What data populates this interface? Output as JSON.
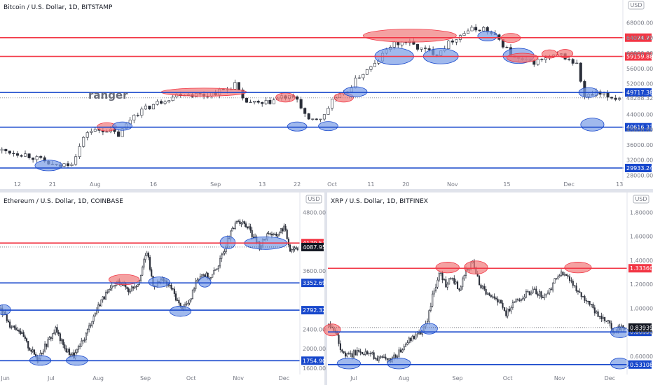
{
  "colors": {
    "up": "#ffffff",
    "down": "#2a2e39",
    "red": "#f23645",
    "blue": "#1848cc",
    "redZone": "#f07d7d",
    "blueZone": "#7b9ee6"
  },
  "chart_data": [
    {
      "type": "candlestick",
      "title": "Bitcoin / U.S. Dollar, 1D, BITSTAMP",
      "currency": "USD",
      "ylim": [
        27000,
        71000
      ],
      "y_ticks": [
        {
          "v": 28000,
          "label": "28000.00"
        },
        {
          "v": 32000,
          "label": "32000.00"
        },
        {
          "v": 36000,
          "label": "36000.00"
        },
        {
          "v": 40000,
          "label": "40000.00"
        },
        {
          "v": 44000,
          "label": "44000.00"
        },
        {
          "v": 52000,
          "label": "52000.00"
        },
        {
          "v": 56000,
          "label": "56000.00"
        },
        {
          "v": 60000,
          "label": "60000.00"
        },
        {
          "v": 64000,
          "label": "64000.00"
        },
        {
          "v": 68000,
          "label": "68000.00"
        }
      ],
      "x_ticks": [
        {
          "i": 4,
          "label": "12"
        },
        {
          "i": 13,
          "label": "21"
        },
        {
          "i": 24,
          "label": "Aug"
        },
        {
          "i": 39,
          "label": "16"
        },
        {
          "i": 55,
          "label": "Sep"
        },
        {
          "i": 67,
          "label": "13"
        },
        {
          "i": 76,
          "label": "22"
        },
        {
          "i": 85,
          "label": "Oct"
        },
        {
          "i": 95,
          "label": "11"
        },
        {
          "i": 104,
          "label": "20"
        },
        {
          "i": 116,
          "label": "Nov"
        },
        {
          "i": 130,
          "label": "15"
        },
        {
          "i": 146,
          "label": "Dec"
        },
        {
          "i": 159,
          "label": "13"
        }
      ],
      "levels": [
        {
          "v": 64074.77,
          "label": "64074.77",
          "color": "red"
        },
        {
          "v": 59159.88,
          "label": "59159.88",
          "color": "red"
        },
        {
          "v": 49717.38,
          "label": "49717.38",
          "color": "blue"
        },
        {
          "v": 40616.33,
          "label": "40616.33",
          "color": "blue"
        },
        {
          "v": 29933.24,
          "label": "29933.24",
          "color": "blue"
        }
      ],
      "last_price": {
        "v": 48288.32,
        "label": "48288.32"
      },
      "annotation": "ranger",
      "path": [
        [
          0,
          34500
        ],
        [
          6,
          33500
        ],
        [
          10,
          32000
        ],
        [
          14,
          30200
        ],
        [
          18,
          31500
        ],
        [
          22,
          39500
        ],
        [
          27,
          40000
        ],
        [
          30,
          38500
        ],
        [
          34,
          44000
        ],
        [
          40,
          47000
        ],
        [
          46,
          49500
        ],
        [
          52,
          49000
        ],
        [
          58,
          50500
        ],
        [
          60,
          52000
        ],
        [
          62,
          47500
        ],
        [
          67,
          46500
        ],
        [
          72,
          48500
        ],
        [
          76,
          48000
        ],
        [
          79,
          42000
        ],
        [
          83,
          43500
        ],
        [
          85,
          48000
        ],
        [
          88,
          49000
        ],
        [
          92,
          54000
        ],
        [
          96,
          57000
        ],
        [
          100,
          62000
        ],
        [
          104,
          63000
        ],
        [
          108,
          61000
        ],
        [
          112,
          60000
        ],
        [
          116,
          63500
        ],
        [
          120,
          66000
        ],
        [
          124,
          66500
        ],
        [
          128,
          63500
        ],
        [
          132,
          58500
        ],
        [
          136,
          57500
        ],
        [
          140,
          58500
        ],
        [
          144,
          59500
        ],
        [
          148,
          57000
        ],
        [
          150,
          48500
        ],
        [
          153,
          49300
        ],
        [
          156,
          48600
        ],
        [
          158,
          48300
        ]
      ],
      "zones": [
        {
          "i": 12,
          "v": 30600,
          "w": 7,
          "h": 2800,
          "color": "blue"
        },
        {
          "i": 27,
          "v": 40700,
          "w": 5,
          "h": 2200,
          "color": "red"
        },
        {
          "i": 31,
          "v": 40900,
          "w": 5,
          "h": 2200,
          "color": "blue"
        },
        {
          "i": 52,
          "v": 49800,
          "w": 22,
          "h": 2100,
          "color": "red"
        },
        {
          "i": 73,
          "v": 48400,
          "w": 5,
          "h": 2400,
          "color": "red"
        },
        {
          "i": 76,
          "v": 40800,
          "w": 5,
          "h": 2400,
          "color": "blue"
        },
        {
          "i": 84,
          "v": 40900,
          "w": 5,
          "h": 2400,
          "color": "blue"
        },
        {
          "i": 88,
          "v": 48400,
          "w": 5,
          "h": 2400,
          "color": "red"
        },
        {
          "i": 91,
          "v": 49900,
          "w": 6,
          "h": 2600,
          "color": "blue"
        },
        {
          "i": 105,
          "v": 64600,
          "w": 24,
          "h": 3400,
          "color": "red"
        },
        {
          "i": 101,
          "v": 59200,
          "w": 10,
          "h": 4400,
          "color": "blue"
        },
        {
          "i": 113,
          "v": 59200,
          "w": 9,
          "h": 4000,
          "color": "blue"
        },
        {
          "i": 125,
          "v": 64500,
          "w": 5,
          "h": 2600,
          "color": "blue"
        },
        {
          "i": 131,
          "v": 64000,
          "w": 5,
          "h": 2400,
          "color": "red"
        },
        {
          "i": 133,
          "v": 59300,
          "w": 8,
          "h": 4000,
          "color": "blue"
        },
        {
          "i": 134,
          "v": 58800,
          "w": 8,
          "h": 2400,
          "color": "red"
        },
        {
          "i": 141,
          "v": 59800,
          "w": 4,
          "h": 2200,
          "color": "red"
        },
        {
          "i": 145,
          "v": 59900,
          "w": 4,
          "h": 2200,
          "color": "red"
        },
        {
          "i": 151,
          "v": 49700,
          "w": 5,
          "h": 2600,
          "color": "blue"
        },
        {
          "i": 152,
          "v": 41300,
          "w": 6,
          "h": 3400,
          "color": "blue"
        }
      ]
    },
    {
      "type": "candlestick",
      "title": "Ethereum / U.S. Dollar, 1D, COINBASE",
      "currency": "USD",
      "ylim": [
        1500,
        4950
      ],
      "y_ticks": [
        {
          "v": 1600,
          "label": "1600.00"
        },
        {
          "v": 2000,
          "label": "2000.00"
        },
        {
          "v": 2400,
          "label": "2400.00"
        },
        {
          "v": 3600,
          "label": "3600.00"
        },
        {
          "v": 4800,
          "label": "4800.00"
        }
      ],
      "x_ticks": [
        {
          "i": 3,
          "label": "Jun"
        },
        {
          "i": 33,
          "label": "Jul"
        },
        {
          "i": 64,
          "label": "Aug"
        },
        {
          "i": 95,
          "label": "Sep"
        },
        {
          "i": 125,
          "label": "Oct"
        },
        {
          "i": 156,
          "label": "Nov"
        },
        {
          "i": 186,
          "label": "Dec"
        }
      ],
      "levels": [
        {
          "v": 4170.51,
          "label": "4170.51",
          "color": "red"
        },
        {
          "v": 3352.69,
          "label": "3352.69",
          "color": "blue"
        },
        {
          "v": 2792.32,
          "label": "2792.32",
          "color": "blue"
        },
        {
          "v": 1754.9,
          "label": "1754.90",
          "color": "blue"
        }
      ],
      "last_price": {
        "v": 4087.95,
        "label": "4087.95"
      },
      "path": [
        [
          0,
          2800
        ],
        [
          6,
          2500
        ],
        [
          12,
          2400
        ],
        [
          18,
          2050
        ],
        [
          24,
          1800
        ],
        [
          30,
          2100
        ],
        [
          36,
          2400
        ],
        [
          42,
          2000
        ],
        [
          48,
          1850
        ],
        [
          54,
          2150
        ],
        [
          60,
          2600
        ],
        [
          66,
          3000
        ],
        [
          72,
          3200
        ],
        [
          78,
          3400
        ],
        [
          84,
          3200
        ],
        [
          90,
          3350
        ],
        [
          96,
          4000
        ],
        [
          100,
          3300
        ],
        [
          106,
          3400
        ],
        [
          112,
          3250
        ],
        [
          118,
          2850
        ],
        [
          124,
          2950
        ],
        [
          128,
          3400
        ],
        [
          132,
          3550
        ],
        [
          138,
          3450
        ],
        [
          144,
          3800
        ],
        [
          150,
          4300
        ],
        [
          156,
          4650
        ],
        [
          162,
          4500
        ],
        [
          166,
          4300
        ],
        [
          170,
          4100
        ],
        [
          176,
          4400
        ],
        [
          180,
          4300
        ],
        [
          186,
          4500
        ],
        [
          190,
          4050
        ],
        [
          194,
          4087
        ]
      ],
      "zones": [
        {
          "i": 2,
          "v": 2800,
          "w": 9,
          "h": 210,
          "color": "blue"
        },
        {
          "i": 26,
          "v": 1760,
          "w": 14,
          "h": 200,
          "color": "blue"
        },
        {
          "i": 50,
          "v": 1760,
          "w": 14,
          "h": 200,
          "color": "blue"
        },
        {
          "i": 81,
          "v": 3420,
          "w": 20,
          "h": 210,
          "color": "red"
        },
        {
          "i": 104,
          "v": 3370,
          "w": 14,
          "h": 210,
          "color": "blue"
        },
        {
          "i": 118,
          "v": 2770,
          "w": 14,
          "h": 210,
          "color": "blue"
        },
        {
          "i": 134,
          "v": 3370,
          "w": 8,
          "h": 210,
          "color": "blue"
        },
        {
          "i": 149,
          "v": 4180,
          "w": 10,
          "h": 260,
          "color": "blue"
        },
        {
          "i": 174,
          "v": 4170,
          "w": 28,
          "h": 260,
          "color": "blue"
        }
      ]
    },
    {
      "type": "candlestick",
      "title": "XRP / U.S. Dollar, 1D, BITFINEX",
      "currency": "USD",
      "ylim": [
        0.46,
        1.86
      ],
      "y_ticks": [
        {
          "v": 0.6,
          "label": "0.60000"
        },
        {
          "v": 0.8,
          "label": "0.80000"
        },
        {
          "v": 1.0,
          "label": "1.00000"
        },
        {
          "v": 1.2,
          "label": "1.20000"
        },
        {
          "v": 1.4,
          "label": "1.40000"
        },
        {
          "v": 1.6,
          "label": "1.60000"
        },
        {
          "v": 1.8,
          "label": "1.80000"
        }
      ],
      "x_ticks": [
        {
          "i": 15,
          "label": "Jul"
        },
        {
          "i": 45,
          "label": "Aug"
        },
        {
          "i": 77,
          "label": "Sep"
        },
        {
          "i": 107,
          "label": "Oct"
        },
        {
          "i": 138,
          "label": "Nov"
        },
        {
          "i": 168,
          "label": "Dec"
        }
      ],
      "levels": [
        {
          "v": 1.3336,
          "label": "1.33360",
          "color": "red"
        },
        {
          "v": 0.8033,
          "label": "0.80330",
          "color": "blue"
        },
        {
          "v": 0.53108,
          "label": "0.53108",
          "color": "blue"
        }
      ],
      "last_price": {
        "v": 0.83939,
        "label": "0.83939"
      },
      "path": [
        [
          0,
          0.85
        ],
        [
          4,
          0.8
        ],
        [
          8,
          0.62
        ],
        [
          12,
          0.6
        ],
        [
          18,
          0.65
        ],
        [
          24,
          0.62
        ],
        [
          30,
          0.58
        ],
        [
          36,
          0.56
        ],
        [
          42,
          0.63
        ],
        [
          48,
          0.73
        ],
        [
          54,
          0.78
        ],
        [
          58,
          0.85
        ],
        [
          62,
          1.1
        ],
        [
          66,
          1.3
        ],
        [
          70,
          1.2
        ],
        [
          74,
          1.25
        ],
        [
          78,
          1.15
        ],
        [
          82,
          1.32
        ],
        [
          86,
          1.38
        ],
        [
          90,
          1.2
        ],
        [
          96,
          1.1
        ],
        [
          102,
          1.05
        ],
        [
          106,
          0.95
        ],
        [
          110,
          1.05
        ],
        [
          116,
          1.1
        ],
        [
          122,
          1.15
        ],
        [
          128,
          1.1
        ],
        [
          132,
          1.15
        ],
        [
          136,
          1.25
        ],
        [
          140,
          1.3
        ],
        [
          144,
          1.25
        ],
        [
          148,
          1.15
        ],
        [
          152,
          1.1
        ],
        [
          156,
          1.05
        ],
        [
          160,
          0.95
        ],
        [
          164,
          0.92
        ],
        [
          168,
          0.86
        ],
        [
          170,
          0.8
        ],
        [
          173,
          0.84
        ],
        [
          176,
          0.83939
        ]
      ],
      "zones": [
        {
          "i": 2,
          "v": 0.82,
          "w": 10,
          "h": 0.1,
          "color": "red"
        },
        {
          "i": 12,
          "v": 0.54,
          "w": 14,
          "h": 0.09,
          "color": "blue"
        },
        {
          "i": 42,
          "v": 0.54,
          "w": 14,
          "h": 0.09,
          "color": "blue"
        },
        {
          "i": 60,
          "v": 0.83,
          "w": 10,
          "h": 0.09,
          "color": "blue"
        },
        {
          "i": 71,
          "v": 1.34,
          "w": 14,
          "h": 0.09,
          "color": "red"
        },
        {
          "i": 88,
          "v": 1.34,
          "w": 14,
          "h": 0.11,
          "color": "red"
        },
        {
          "i": 149,
          "v": 1.34,
          "w": 16,
          "h": 0.09,
          "color": "red"
        },
        {
          "i": 174,
          "v": 0.8,
          "w": 11,
          "h": 0.09,
          "color": "blue"
        },
        {
          "i": 174,
          "v": 0.54,
          "w": 11,
          "h": 0.09,
          "color": "blue"
        }
      ]
    }
  ]
}
